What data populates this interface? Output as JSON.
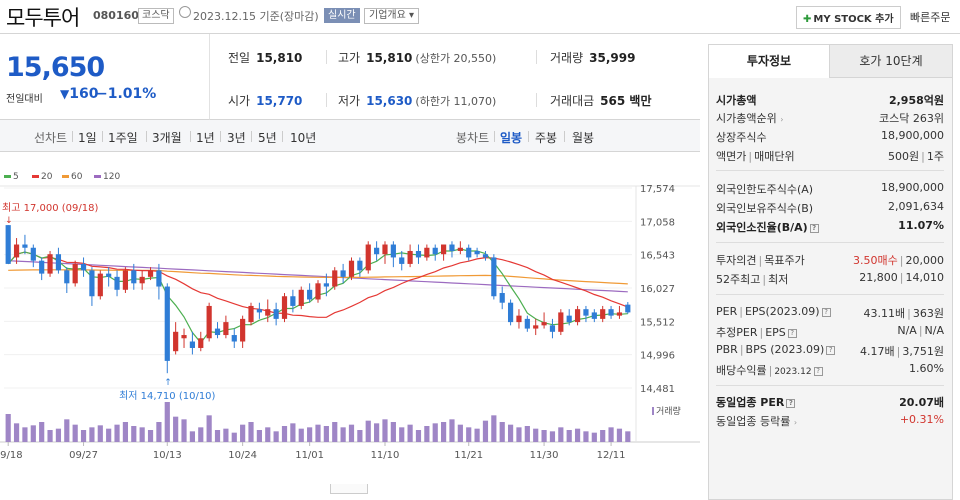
{
  "header": {
    "name": "모두투어",
    "code": "080160",
    "market": "코스닥",
    "date": "2023.12.15 기준(장마감)",
    "realtime": "실시간",
    "company_info": "기업개요",
    "my_stock": "MY STOCK 추가",
    "quick_order": "빠른주문"
  },
  "price": {
    "current": "15,650",
    "change_label": "전일대비",
    "change": "160",
    "percent": "−1.01%"
  },
  "quotes": {
    "prev_label": "전일",
    "prev": "15,810",
    "high_label": "고가",
    "high": "15,810",
    "upper": "(상한가 20,550)",
    "volume_label": "거래량",
    "volume": "35,999",
    "open_label": "시가",
    "open": "15,770",
    "low_label": "저가",
    "low": "15,630",
    "lower": "(하한가 11,070)",
    "amount_label": "거래대금",
    "amount": "565 백만"
  },
  "periods": {
    "line_label": "선차트",
    "items": [
      "1일",
      "1주일",
      "3개월",
      "1년",
      "3년",
      "5년",
      "10년"
    ],
    "candle_label": "봉차트",
    "candle_items": [
      "일봉",
      "주봉",
      "월봉"
    ],
    "active_candle": "일봉"
  },
  "colors": {
    "up": "#d1352e",
    "down": "#2f7dd6",
    "ma5": "#4caf50",
    "ma20": "#e53935",
    "ma60": "#f09a36",
    "ma120": "#9c6bc0",
    "volume": "#9f86c6"
  },
  "chart_data": {
    "type": "candlestick",
    "ylim": [
      14481,
      17574
    ],
    "yticks": [
      "17,574",
      "17,058",
      "16,543",
      "16,027",
      "15,512",
      "14,996",
      "14,481"
    ],
    "xticks": [
      "09/18",
      "09/27",
      "10/13",
      "10/24",
      "11/01",
      "11/10",
      "11/21",
      "11/30",
      "12/11"
    ],
    "legend": [
      "5",
      "20",
      "60",
      "120"
    ],
    "volume_label": "거래량",
    "high_note": "최고 17,000 (09/18)",
    "low_note": "최저 14,710 (10/10)",
    "candles": [
      [
        17000,
        16400,
        17000,
        16500
      ],
      [
        16500,
        16700,
        16800,
        16400
      ],
      [
        16700,
        16650,
        16850,
        16550
      ],
      [
        16650,
        16450,
        16700,
        16350
      ],
      [
        16450,
        16250,
        16500,
        16150
      ],
      [
        16250,
        16550,
        16600,
        16200
      ],
      [
        16550,
        16300,
        16650,
        16250
      ],
      [
        16300,
        16100,
        16350,
        15950
      ],
      [
        16100,
        16400,
        16450,
        16050
      ],
      [
        16400,
        16300,
        16500,
        16200
      ],
      [
        16300,
        15900,
        16350,
        15750
      ],
      [
        15900,
        16250,
        16300,
        15850
      ],
      [
        16250,
        16200,
        16350,
        16050
      ],
      [
        16200,
        16000,
        16300,
        15900
      ],
      [
        16000,
        16300,
        16350,
        15950
      ],
      [
        16300,
        16100,
        16400,
        16000
      ],
      [
        16100,
        16200,
        16300,
        16000
      ],
      [
        16200,
        16300,
        16350,
        16150
      ],
      [
        16300,
        16050,
        16400,
        15850
      ],
      [
        16050,
        14900,
        16100,
        14710
      ],
      [
        15050,
        15350,
        15500,
        15000
      ],
      [
        15250,
        15300,
        15400,
        15100
      ],
      [
        15200,
        15100,
        15350,
        15000
      ],
      [
        15100,
        15250,
        15350,
        15050
      ],
      [
        15250,
        15750,
        15800,
        15200
      ],
      [
        15400,
        15300,
        15500,
        15250
      ],
      [
        15300,
        15500,
        15600,
        15250
      ],
      [
        15300,
        15200,
        15400,
        15100
      ],
      [
        15200,
        15550,
        15600,
        15100
      ],
      [
        15500,
        15750,
        15800,
        15450
      ],
      [
        15700,
        15650,
        15800,
        15550
      ],
      [
        15600,
        15700,
        15850,
        15500
      ],
      [
        15700,
        15550,
        15800,
        15450
      ],
      [
        15550,
        15900,
        15950,
        15500
      ],
      [
        15900,
        15750,
        16000,
        15650
      ],
      [
        15750,
        16000,
        16050,
        15700
      ],
      [
        16000,
        15850,
        16100,
        15800
      ],
      [
        15850,
        16100,
        16150,
        15800
      ],
      [
        16100,
        16050,
        16250,
        15900
      ],
      [
        16050,
        16300,
        16350,
        16000
      ],
      [
        16300,
        16200,
        16400,
        16100
      ],
      [
        16200,
        16450,
        16500,
        16150
      ],
      [
        16450,
        16300,
        16500,
        16200
      ],
      [
        16300,
        16700,
        16750,
        16250
      ],
      [
        16650,
        16550,
        16750,
        16450
      ],
      [
        16550,
        16700,
        16750,
        16400
      ],
      [
        16700,
        16500,
        16750,
        16350
      ],
      [
        16500,
        16400,
        16600,
        16300
      ],
      [
        16400,
        16600,
        16700,
        16350
      ],
      [
        16600,
        16500,
        16700,
        16400
      ],
      [
        16500,
        16650,
        16700,
        16450
      ],
      [
        16650,
        16550,
        16700,
        16450
      ],
      [
        16550,
        16700,
        16700,
        16450
      ],
      [
        16700,
        16600,
        16750,
        16500
      ],
      [
        16600,
        16650,
        16750,
        16550
      ],
      [
        16650,
        16500,
        16700,
        16450
      ],
      [
        16600,
        16550,
        16650,
        16500
      ],
      [
        16550,
        16500,
        16600,
        16450
      ],
      [
        16500,
        15900,
        16550,
        15850
      ],
      [
        15950,
        15800,
        16050,
        15700
      ],
      [
        15800,
        15500,
        15850,
        15450
      ],
      [
        15500,
        15600,
        15700,
        15400
      ],
      [
        15550,
        15400,
        15600,
        15350
      ],
      [
        15400,
        15450,
        15550,
        15300
      ],
      [
        15450,
        15500,
        15650,
        15400
      ],
      [
        15450,
        15350,
        15550,
        15250
      ],
      [
        15350,
        15650,
        15700,
        15300
      ],
      [
        15600,
        15500,
        15700,
        15450
      ],
      [
        15500,
        15700,
        15750,
        15450
      ],
      [
        15700,
        15600,
        15750,
        15500
      ],
      [
        15650,
        15550,
        15700,
        15500
      ],
      [
        15550,
        15700,
        15750,
        15500
      ],
      [
        15700,
        15600,
        15750,
        15550
      ],
      [
        15600,
        15650,
        15750,
        15550
      ],
      [
        15770,
        15650,
        15810,
        15630
      ]
    ],
    "volumes": [
      42,
      28,
      22,
      25,
      30,
      18,
      20,
      34,
      26,
      18,
      22,
      25,
      20,
      26,
      30,
      24,
      22,
      18,
      30,
      60,
      38,
      34,
      16,
      22,
      40,
      18,
      20,
      14,
      26,
      30,
      18,
      22,
      16,
      24,
      28,
      20,
      22,
      26,
      24,
      30,
      22,
      26,
      18,
      32,
      28,
      34,
      30,
      22,
      26,
      18,
      24,
      28,
      30,
      34,
      26,
      22,
      20,
      32,
      40,
      30,
      26,
      22,
      24,
      20,
      18,
      16,
      22,
      18,
      20,
      16,
      14,
      18,
      22,
      20,
      16
    ]
  },
  "side": {
    "tab_info": "투자정보",
    "tab_quotes": "호가 10단계",
    "market_cap_label": "시가총액",
    "market_cap": "2,958억원",
    "cap_rank_label": "시가총액순위",
    "cap_rank": "코스닥 263위",
    "shares_label": "상장주식수",
    "shares": "18,900,000",
    "par_label": "액면가",
    "unit_label": "매매단위",
    "par": "500원",
    "unit": "1주",
    "foreign_limit_label": "외국인한도주식수(A)",
    "foreign_limit": "18,900,000",
    "foreign_hold_label": "외국인보유주식수(B)",
    "foreign_hold": "2,091,634",
    "foreign_ratio_label": "외국인소진율(B/A)",
    "foreign_ratio": "11.07%",
    "opinion_label": "투자의견",
    "target_label": "목표주가",
    "opinion": "3.50매수",
    "target": "20,000",
    "w52_label": "52주최고",
    "w52_low_label": "최저",
    "w52_high": "21,800",
    "w52_low": "14,010",
    "per_label": "PER",
    "eps_label": "EPS(2023.09)",
    "per": "43.11배",
    "eps": "363원",
    "est_per_label": "추정PER",
    "est_eps_label": "EPS",
    "est_per": "N/A",
    "est_eps": "N/A",
    "pbr_label": "PBR",
    "bps_label": "BPS (2023.09)",
    "pbr": "4.17배",
    "bps": "3,751원",
    "div_label": "배당수익률",
    "div_date": "2023.12",
    "div": "1.60%",
    "ind_per_label": "동일업종 PER",
    "ind_per": "20.07배",
    "ind_rate_label": "동일업종 등락률",
    "ind_rate": "+0.31%"
  }
}
